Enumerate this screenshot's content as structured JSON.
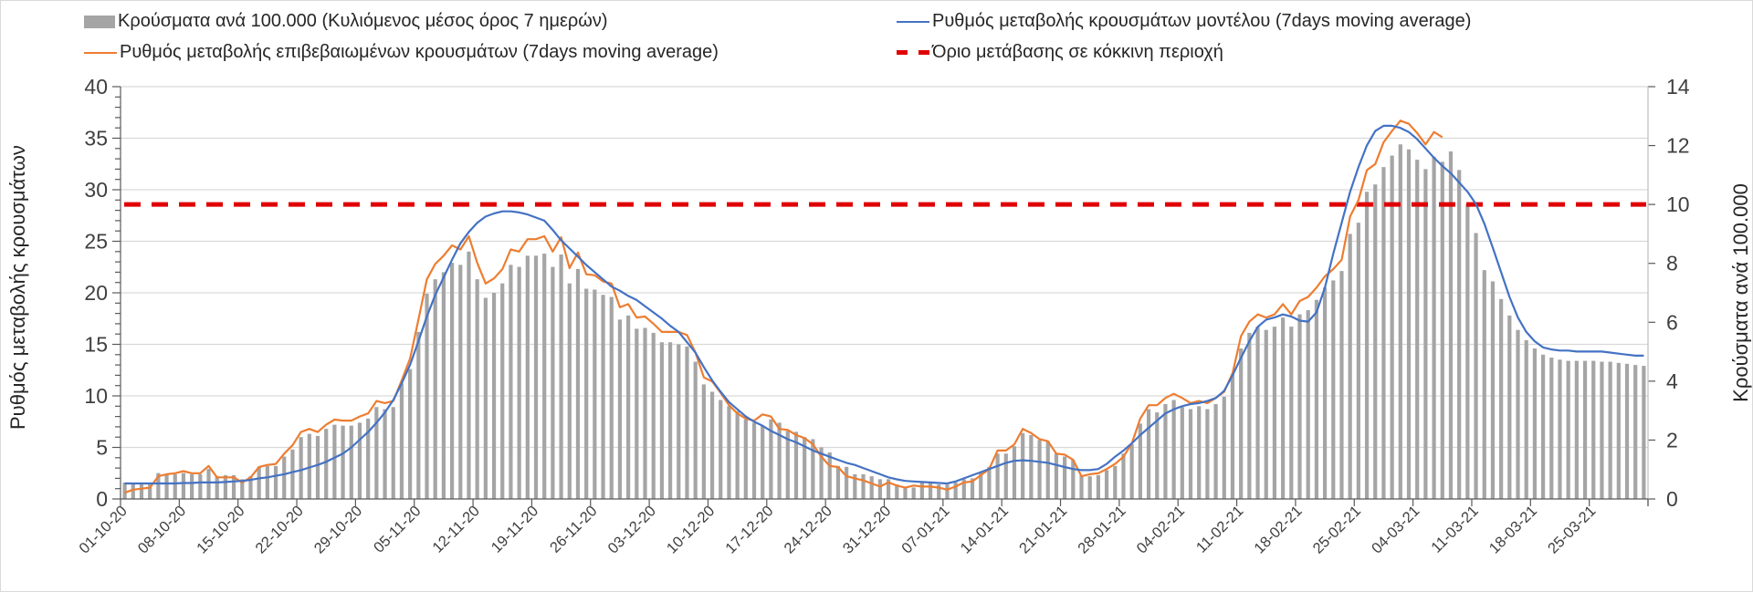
{
  "chart_data": {
    "type": "bar+line",
    "legend": {
      "bars": "Κρούσματα ανά 100.000 (Κυλιόμενος μέσος όρος 7 ημερών)",
      "model": "Ρυθμός μεταβολής κρουσμάτων μοντέλου (7days moving average)",
      "confirmed": "Ρυθμός μεταβολής επιβεβαιωμένων κρουσμάτων (7days moving average)",
      "threshold": "Όριο μετάβασης σε κόκκινη περιοχή",
      "placement": "top"
    },
    "ylabel_left": "Ρυθμός μεταβολής κρουσμάτων",
    "ylabel_right": "Κρούσματα ανά 100.000",
    "ylim_left": [
      0,
      40
    ],
    "ylim_right": [
      0,
      14
    ],
    "yticks_left": [
      "0",
      "5",
      "10",
      "15",
      "20",
      "25",
      "30",
      "35",
      "40"
    ],
    "yticks_right": [
      "0",
      "2",
      "4",
      "6",
      "8",
      "10",
      "12",
      "14"
    ],
    "grid": true,
    "x_start": "01-10-20",
    "n_days": 182,
    "xtick_labels": [
      "01-10-20",
      "08-10-20",
      "15-10-20",
      "22-10-20",
      "29-10-20",
      "05-11-20",
      "12-11-20",
      "19-11-20",
      "26-11-20",
      "03-12-20",
      "10-12-20",
      "17-12-20",
      "24-12-20",
      "31-12-20",
      "07-01-21",
      "14-01-21",
      "21-01-21",
      "28-01-21",
      "04-02-21",
      "11-02-21",
      "18-02-21",
      "25-02-21",
      "04-03-21",
      "11-03-21",
      "18-03-21",
      "25-03-21"
    ],
    "threshold_right_axis": 10,
    "colors": {
      "bars": "#a5a5a5",
      "model": "#4472c4",
      "confirmed": "#ed7d31",
      "threshold": "#e00000",
      "grid": "#d9d9d9"
    },
    "bars_cases_per_100k": [
      0.56,
      0.53,
      0.53,
      0.49,
      0.88,
      0.84,
      0.84,
      0.88,
      0.84,
      0.84,
      1.02,
      0.77,
      0.81,
      0.81,
      0.67,
      0.77,
      1.09,
      1.12,
      1.12,
      1.44,
      1.68,
      2.1,
      2.21,
      2.14,
      2.38,
      2.52,
      2.49,
      2.49,
      2.59,
      2.73,
      3.12,
      3.05,
      3.12,
      3.92,
      4.41,
      5.67,
      6.97,
      7.46,
      7.7,
      8.02,
      7.95,
      8.4,
      7.46,
      6.83,
      7.0,
      7.32,
      7.95,
      7.88,
      8.26,
      8.26,
      8.33,
      7.88,
      8.3,
      7.32,
      7.81,
      7.14,
      7.11,
      6.93,
      6.86,
      6.09,
      6.23,
      5.78,
      5.81,
      5.64,
      5.32,
      5.32,
      5.25,
      5.18,
      4.66,
      3.89,
      3.64,
      3.36,
      3.15,
      2.98,
      2.7,
      2.59,
      2.49,
      2.7,
      2.59,
      2.31,
      2.28,
      2.1,
      2.03,
      1.75,
      1.58,
      1.12,
      1.09,
      0.84,
      0.84,
      0.77,
      0.67,
      0.67,
      0.49,
      0.39,
      0.39,
      0.56,
      0.56,
      0.49,
      0.49,
      0.56,
      0.67,
      0.7,
      0.91,
      1.09,
      1.54,
      1.54,
      1.79,
      2.24,
      2.17,
      2.0,
      1.96,
      1.54,
      1.44,
      1.33,
      0.81,
      0.77,
      0.81,
      0.98,
      1.12,
      1.54,
      1.86,
      2.56,
      3.05,
      2.94,
      3.22,
      3.36,
      3.12,
      3.05,
      3.15,
      3.05,
      3.22,
      3.47,
      4.24,
      5.11,
      5.64,
      5.85,
      5.74,
      5.85,
      6.16,
      5.85,
      6.27,
      6.41,
      6.76,
      7.18,
      7.42,
      7.74,
      9.0,
      9.38,
      10.43,
      10.68,
      11.27,
      11.66,
      12.04,
      11.87,
      11.52,
      11.2,
      11.62,
      11.45,
      11.8,
      11.17,
      10.01,
      9.03,
      7.77,
      7.39,
      6.79,
      6.23,
      5.74,
      5.39,
      5.11,
      4.9,
      4.8,
      4.73,
      4.69,
      4.69,
      4.69,
      4.69,
      4.66,
      4.66,
      4.62,
      4.59,
      4.55,
      4.52
    ],
    "confirmed_rate": [
      0.6,
      0.9,
      1.0,
      1.1,
      2.2,
      2.4,
      2.5,
      2.7,
      2.5,
      2.5,
      3.2,
      2.1,
      2.1,
      2.1,
      1.6,
      2.1,
      3.1,
      3.3,
      3.4,
      4.4,
      5.2,
      6.5,
      6.8,
      6.5,
      7.2,
      7.7,
      7.6,
      7.6,
      8.0,
      8.3,
      9.5,
      9.3,
      9.5,
      11.5,
      13.6,
      17.4,
      21.3,
      22.8,
      23.6,
      24.6,
      24.2,
      25.5,
      22.9,
      20.9,
      21.4,
      22.3,
      24.2,
      24.0,
      25.2,
      25.2,
      25.5,
      24.0,
      25.4,
      22.4,
      23.9,
      21.8,
      21.7,
      21.1,
      20.9,
      18.6,
      18.9,
      17.6,
      17.7,
      17.0,
      16.2,
      16.2,
      16.2,
      15.9,
      14.2,
      11.8,
      11.4,
      10.3,
      9.1,
      8.3,
      7.8,
      7.6,
      8.2,
      8.0,
      6.8,
      6.7,
      6.2,
      5.9,
      5.3,
      4.1,
      3.2,
      3.1,
      2.2,
      2.0,
      1.8,
      1.5,
      1.2,
      1.6,
      1.3,
      1.1,
      1.3,
      1.2,
      1.2,
      1.1,
      0.9,
      1.2,
      1.6,
      1.7,
      2.3,
      2.9,
      4.7,
      4.7,
      5.3,
      6.8,
      6.4,
      5.8,
      5.6,
      4.4,
      4.3,
      3.8,
      2.2,
      2.4,
      2.5,
      2.9,
      3.4,
      4.1,
      5.4,
      7.8,
      9.1,
      9.1,
      9.8,
      10.2,
      9.8,
      9.3,
      9.5,
      9.3,
      9.8,
      10.4,
      12.2,
      15.8,
      17.2,
      17.9,
      17.6,
      17.9,
      18.9,
      17.9,
      19.2,
      19.6,
      20.5,
      21.6,
      22.3,
      23.2,
      27.4,
      29.0,
      31.9,
      32.5,
      34.6,
      35.7,
      36.7,
      36.4,
      35.5,
      34.4,
      35.6,
      35.1
    ],
    "model_rate": [
      1.5,
      1.5,
      1.5,
      1.5,
      1.5,
      1.5,
      1.5,
      1.55,
      1.55,
      1.6,
      1.6,
      1.6,
      1.65,
      1.7,
      1.75,
      1.85,
      2.0,
      2.1,
      2.25,
      2.4,
      2.6,
      2.8,
      3.05,
      3.3,
      3.6,
      4.0,
      4.4,
      5.0,
      5.75,
      6.5,
      7.4,
      8.4,
      9.6,
      11.2,
      13.0,
      15.3,
      17.7,
      19.8,
      21.5,
      23.2,
      24.8,
      25.9,
      26.8,
      27.4,
      27.7,
      27.9,
      27.9,
      27.8,
      27.6,
      27.3,
      27.0,
      26.1,
      25.1,
      24.3,
      23.5,
      22.7,
      22.0,
      21.3,
      20.6,
      20.2,
      19.7,
      19.3,
      18.7,
      18.1,
      17.5,
      16.8,
      16.2,
      15.2,
      14.2,
      12.8,
      11.5,
      10.4,
      9.4,
      8.7,
      8.0,
      7.5,
      7.1,
      6.6,
      6.2,
      5.8,
      5.5,
      5.1,
      4.7,
      4.4,
      4.1,
      3.8,
      3.5,
      3.3,
      3.0,
      2.7,
      2.4,
      2.1,
      1.9,
      1.75,
      1.7,
      1.65,
      1.6,
      1.55,
      1.5,
      1.7,
      2.0,
      2.3,
      2.6,
      2.9,
      3.2,
      3.5,
      3.7,
      3.75,
      3.7,
      3.6,
      3.5,
      3.3,
      3.1,
      2.9,
      2.8,
      2.8,
      2.9,
      3.4,
      4.1,
      4.7,
      5.4,
      6.2,
      6.9,
      7.6,
      8.3,
      8.7,
      9.0,
      9.2,
      9.3,
      9.5,
      9.8,
      10.5,
      12.0,
      13.7,
      15.3,
      16.7,
      17.4,
      17.6,
      17.9,
      17.7,
      17.3,
      17.2,
      18.1,
      20.5,
      23.8,
      26.8,
      29.8,
      32.2,
      34.3,
      35.7,
      36.2,
      36.2,
      36.0,
      35.6,
      34.9,
      34.0,
      33.1,
      32.3,
      31.6,
      30.7,
      29.8,
      28.6,
      26.7,
      24.4,
      22.0,
      19.6,
      17.6,
      16.2,
      15.3,
      14.7,
      14.5,
      14.4,
      14.4,
      14.3,
      14.3,
      14.3,
      14.3,
      14.2,
      14.1,
      14.0,
      13.9,
      13.9
    ]
  }
}
